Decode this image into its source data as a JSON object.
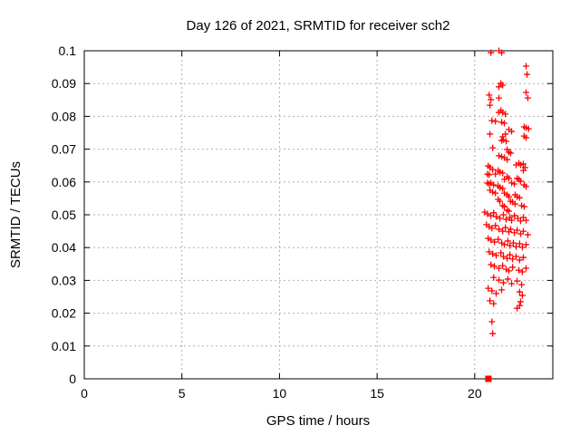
{
  "chart_data": {
    "type": "scatter",
    "title": "Day 126 of 2021, SRMTID for receiver sch2",
    "xlabel": "GPS time / hours",
    "ylabel": "SRMTID / TECUs",
    "xlim": [
      0,
      24
    ],
    "ylim": [
      0,
      0.1
    ],
    "x_ticks": [
      0,
      5,
      10,
      15,
      20
    ],
    "x_tick_labels": [
      "0",
      "5",
      "10",
      "15",
      "20"
    ],
    "y_ticks": [
      0,
      0.01,
      0.02,
      0.03,
      0.04,
      0.05,
      0.06,
      0.07,
      0.08,
      0.09,
      0.1
    ],
    "y_tick_labels": [
      "0",
      "0.01",
      "0.02",
      "0.03",
      "0.04",
      "0.05",
      "0.06",
      "0.07",
      "0.08",
      "0.09",
      "0.1"
    ],
    "grid": true,
    "grid_color": "#b0b0b0",
    "border_color": "#000000",
    "background_color": "#ffffff",
    "marker_color": "#ff0000",
    "legend": "none",
    "series": [
      {
        "name": "SRMTID measurements",
        "marker": "plus",
        "color": "#ff0000",
        "points": [
          [
            20.83,
            0.0994
          ],
          [
            21.24,
            0.1
          ],
          [
            21.38,
            0.0994
          ],
          [
            22.63,
            0.0953
          ],
          [
            22.68,
            0.0928
          ],
          [
            21.34,
            0.0901
          ],
          [
            21.24,
            0.089
          ],
          [
            21.43,
            0.0895
          ],
          [
            20.74,
            0.0865
          ],
          [
            20.83,
            0.0851
          ],
          [
            21.24,
            0.0856
          ],
          [
            22.63,
            0.0873
          ],
          [
            22.72,
            0.0856
          ],
          [
            20.78,
            0.0834
          ],
          [
            21.34,
            0.0818
          ],
          [
            21.43,
            0.0812
          ],
          [
            21.57,
            0.0807
          ],
          [
            21.24,
            0.0812
          ],
          [
            20.88,
            0.0787
          ],
          [
            21.06,
            0.0785
          ],
          [
            21.38,
            0.0782
          ],
          [
            21.52,
            0.0779
          ],
          [
            21.75,
            0.076
          ],
          [
            21.89,
            0.0754
          ],
          [
            21.57,
            0.0746
          ],
          [
            21.43,
            0.0738
          ],
          [
            22.53,
            0.0768
          ],
          [
            22.63,
            0.0765
          ],
          [
            22.76,
            0.0762
          ],
          [
            20.78,
            0.0746
          ],
          [
            22.53,
            0.074
          ],
          [
            22.63,
            0.0735
          ],
          [
            21.38,
            0.0726
          ],
          [
            21.47,
            0.0729
          ],
          [
            21.61,
            0.0724
          ],
          [
            20.92,
            0.0704
          ],
          [
            21.66,
            0.0699
          ],
          [
            21.75,
            0.0691
          ],
          [
            21.84,
            0.0688
          ],
          [
            21.24,
            0.068
          ],
          [
            21.38,
            0.0677
          ],
          [
            21.52,
            0.0674
          ],
          [
            21.66,
            0.0668
          ],
          [
            20.69,
            0.0649
          ],
          [
            20.78,
            0.0644
          ],
          [
            20.92,
            0.0638
          ],
          [
            22.12,
            0.0652
          ],
          [
            22.26,
            0.0657
          ],
          [
            22.35,
            0.0652
          ],
          [
            22.49,
            0.0655
          ],
          [
            22.58,
            0.0644
          ],
          [
            22.49,
            0.0635
          ],
          [
            21.2,
            0.0635
          ],
          [
            21.29,
            0.063
          ],
          [
            21.43,
            0.0627
          ],
          [
            21.06,
            0.0624
          ],
          [
            20.65,
            0.0624
          ],
          [
            20.74,
            0.0622
          ],
          [
            21.66,
            0.0616
          ],
          [
            21.75,
            0.0611
          ],
          [
            21.52,
            0.0608
          ],
          [
            22.17,
            0.0611
          ],
          [
            22.26,
            0.0608
          ],
          [
            22.35,
            0.0602
          ],
          [
            20.65,
            0.0597
          ],
          [
            20.74,
            0.0594
          ],
          [
            20.83,
            0.0597
          ],
          [
            20.97,
            0.0591
          ],
          [
            21.2,
            0.0588
          ],
          [
            21.29,
            0.0583
          ],
          [
            21.43,
            0.058
          ],
          [
            21.89,
            0.0597
          ],
          [
            22.03,
            0.0594
          ],
          [
            22.53,
            0.0591
          ],
          [
            22.63,
            0.0586
          ],
          [
            20.78,
            0.0575
          ],
          [
            20.92,
            0.0569
          ],
          [
            21.06,
            0.0566
          ],
          [
            21.52,
            0.0566
          ],
          [
            21.66,
            0.0561
          ],
          [
            21.75,
            0.0555
          ],
          [
            22.07,
            0.0561
          ],
          [
            22.17,
            0.0555
          ],
          [
            22.3,
            0.0552
          ],
          [
            21.2,
            0.0547
          ],
          [
            21.29,
            0.0541
          ],
          [
            21.84,
            0.0541
          ],
          [
            21.94,
            0.0539
          ],
          [
            22.07,
            0.0533
          ],
          [
            21.43,
            0.0528
          ],
          [
            21.52,
            0.0525
          ],
          [
            22.4,
            0.0528
          ],
          [
            22.53,
            0.0525
          ],
          [
            21.66,
            0.0514
          ],
          [
            21.75,
            0.0511
          ],
          [
            20.51,
            0.0508
          ],
          [
            20.65,
            0.0503
          ],
          [
            20.83,
            0.0497
          ],
          [
            20.97,
            0.0506
          ],
          [
            21.1,
            0.0494
          ],
          [
            21.29,
            0.0489
          ],
          [
            21.47,
            0.05
          ],
          [
            21.61,
            0.0486
          ],
          [
            21.8,
            0.0492
          ],
          [
            21.89,
            0.0483
          ],
          [
            22.03,
            0.0497
          ],
          [
            22.21,
            0.0489
          ],
          [
            22.35,
            0.0481
          ],
          [
            22.49,
            0.0492
          ],
          [
            22.63,
            0.0483
          ],
          [
            20.6,
            0.047
          ],
          [
            20.74,
            0.0464
          ],
          [
            20.88,
            0.0459
          ],
          [
            21.06,
            0.0467
          ],
          [
            21.24,
            0.0456
          ],
          [
            21.43,
            0.045
          ],
          [
            21.57,
            0.0461
          ],
          [
            21.75,
            0.0448
          ],
          [
            21.84,
            0.0456
          ],
          [
            22.03,
            0.0445
          ],
          [
            22.17,
            0.0453
          ],
          [
            22.35,
            0.0442
          ],
          [
            22.49,
            0.045
          ],
          [
            22.72,
            0.0439
          ],
          [
            20.69,
            0.0428
          ],
          [
            20.83,
            0.0423
          ],
          [
            21.01,
            0.0417
          ],
          [
            21.2,
            0.0425
          ],
          [
            21.38,
            0.0414
          ],
          [
            21.52,
            0.0409
          ],
          [
            21.7,
            0.042
          ],
          [
            21.8,
            0.0406
          ],
          [
            21.98,
            0.0414
          ],
          [
            22.12,
            0.0403
          ],
          [
            22.3,
            0.0412
          ],
          [
            22.44,
            0.0401
          ],
          [
            22.63,
            0.0409
          ],
          [
            20.74,
            0.0387
          ],
          [
            20.92,
            0.0381
          ],
          [
            21.1,
            0.0376
          ],
          [
            21.34,
            0.0384
          ],
          [
            21.47,
            0.0373
          ],
          [
            21.66,
            0.0367
          ],
          [
            21.8,
            0.0378
          ],
          [
            21.94,
            0.0365
          ],
          [
            22.12,
            0.0373
          ],
          [
            22.3,
            0.0362
          ],
          [
            22.49,
            0.037
          ],
          [
            20.83,
            0.0348
          ],
          [
            21.01,
            0.0343
          ],
          [
            21.24,
            0.0337
          ],
          [
            21.43,
            0.0345
          ],
          [
            21.61,
            0.0334
          ],
          [
            21.75,
            0.0329
          ],
          [
            21.94,
            0.034
          ],
          [
            22.26,
            0.0331
          ],
          [
            22.44,
            0.0326
          ],
          [
            22.63,
            0.0337
          ],
          [
            20.97,
            0.0309
          ],
          [
            21.24,
            0.0301
          ],
          [
            21.47,
            0.0293
          ],
          [
            21.7,
            0.0304
          ],
          [
            21.89,
            0.029
          ],
          [
            22.17,
            0.0298
          ],
          [
            22.4,
            0.0287
          ],
          [
            20.69,
            0.0276
          ],
          [
            20.88,
            0.0268
          ],
          [
            21.1,
            0.026
          ],
          [
            21.38,
            0.0271
          ],
          [
            22.3,
            0.0265
          ],
          [
            22.44,
            0.0254
          ],
          [
            22.3,
            0.0223
          ],
          [
            22.17,
            0.0215
          ],
          [
            20.78,
            0.0238
          ],
          [
            20.97,
            0.0229
          ],
          [
            22.35,
            0.0235
          ],
          [
            20.88,
            0.0174
          ],
          [
            20.92,
            0.0138
          ]
        ]
      },
      {
        "name": "zero flag",
        "marker": "filled-square",
        "color": "#ff0000",
        "points": [
          [
            20.7,
            0
          ]
        ]
      }
    ]
  }
}
